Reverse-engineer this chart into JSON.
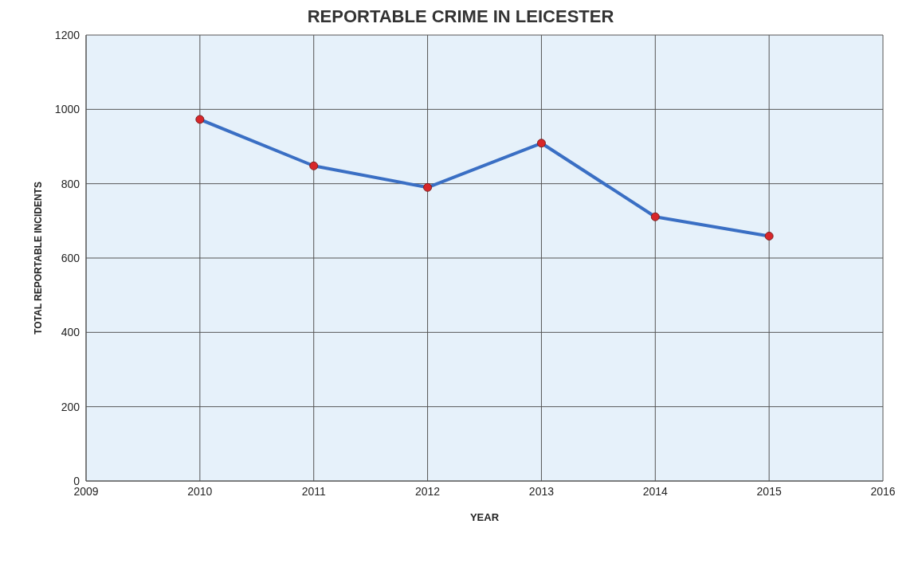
{
  "chart_data": {
    "type": "line",
    "title": "REPORTABLE CRIME IN LEICESTER",
    "xlabel": "YEAR",
    "ylabel": "TOTAL REPORTABLE INCIDENTS",
    "x": [
      2010,
      2011,
      2012,
      2013,
      2014,
      2015
    ],
    "series": [
      {
        "color": "#3a6fc4",
        "values": [
          973,
          848,
          790,
          909,
          711,
          659
        ]
      }
    ],
    "xlim": [
      2009,
      2016
    ],
    "xticks": [
      2009,
      2010,
      2011,
      2012,
      2013,
      2014,
      2015,
      2016
    ],
    "ylim": [
      0,
      1200
    ],
    "yticks": [
      0,
      200,
      400,
      600,
      800,
      1000,
      1200
    ],
    "grid": true,
    "marker": "circle",
    "line_style": "solid"
  }
}
